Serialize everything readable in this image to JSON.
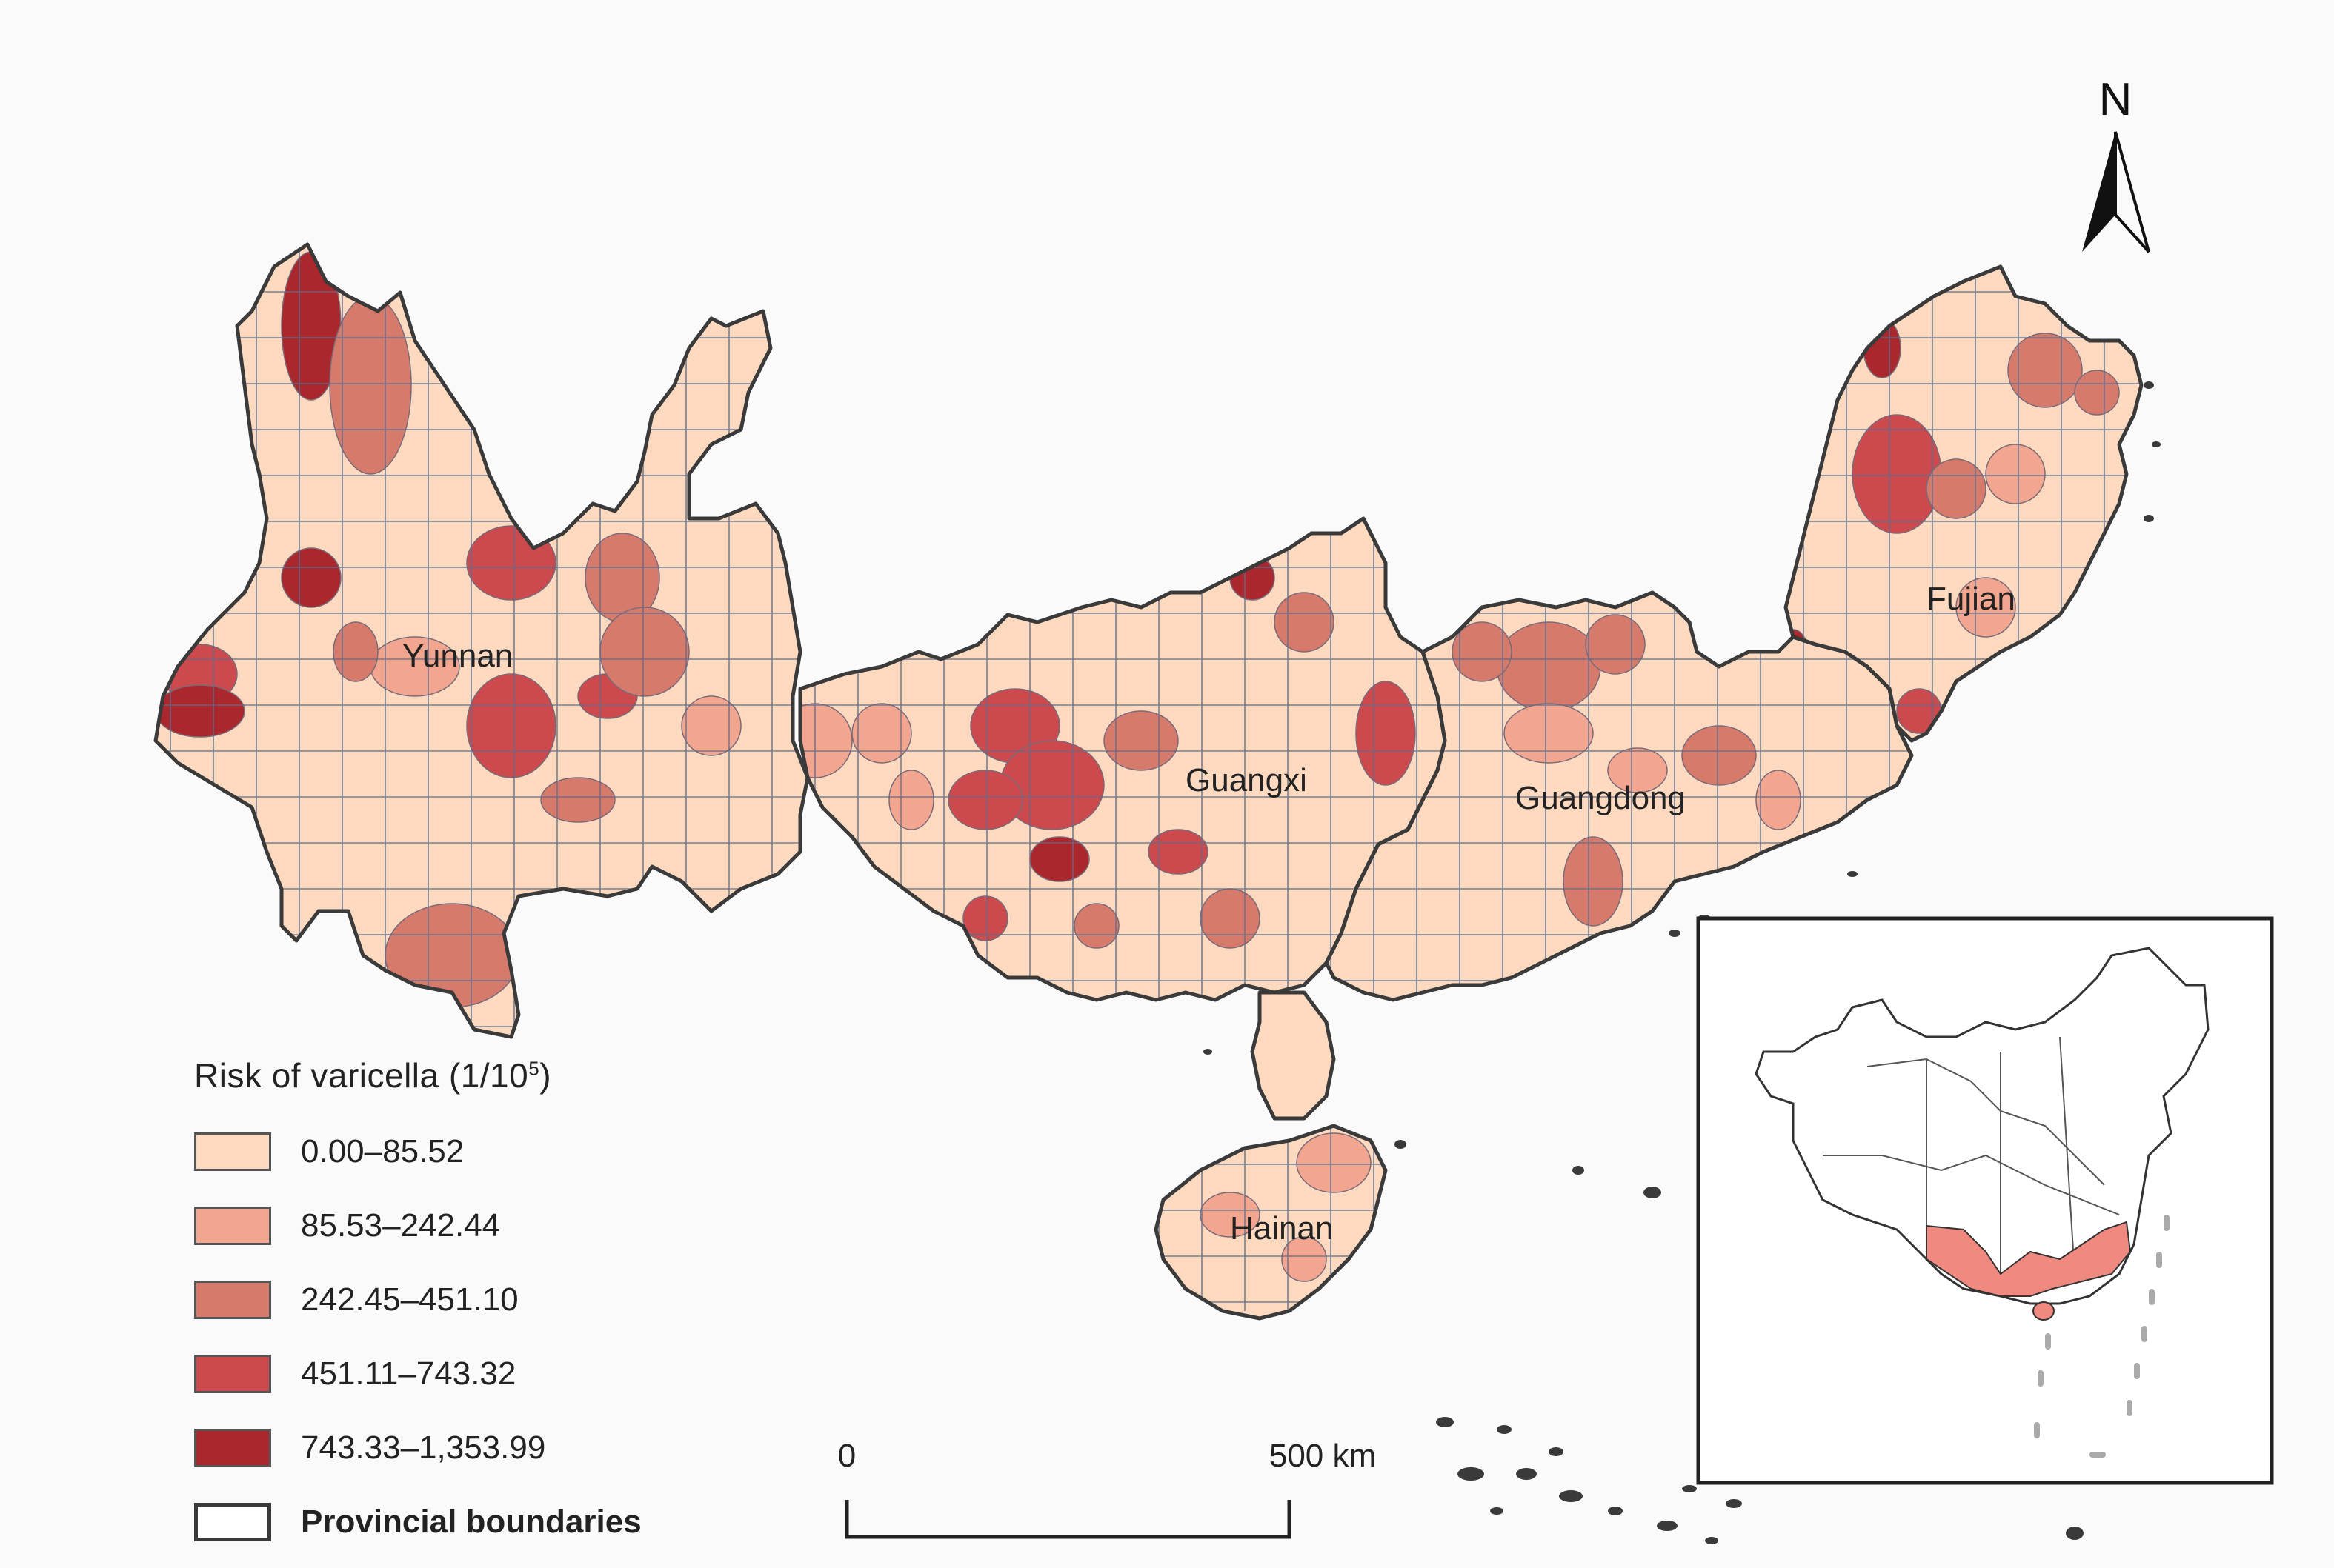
{
  "legend": {
    "title": "Risk of varicella (1/10",
    "title_sup": "5",
    "title_end": ")",
    "classes": [
      {
        "label": "0.00–85.52",
        "color": "#fcd9bf"
      },
      {
        "label": "85.53–242.44",
        "color": "#f3a68f"
      },
      {
        "label": "242.45–451.10",
        "color": "#d67a6c"
      },
      {
        "label": "451.11–743.32",
        "color": "#cc4a4d"
      },
      {
        "label": "743.33–1,353.99",
        "color": "#a9272d"
      }
    ],
    "boundary_label": "Provincial boundaries"
  },
  "provinces": [
    {
      "name": "Yunnan"
    },
    {
      "name": "Guangxi"
    },
    {
      "name": "Guangdong"
    },
    {
      "name": "Fujian"
    },
    {
      "name": "Hainan"
    }
  ],
  "north_arrow": {
    "label": "N"
  },
  "scale_bar": {
    "start_label": "0",
    "end_label": "500 km"
  },
  "inset": {
    "highlight_color": "#f08a80"
  }
}
